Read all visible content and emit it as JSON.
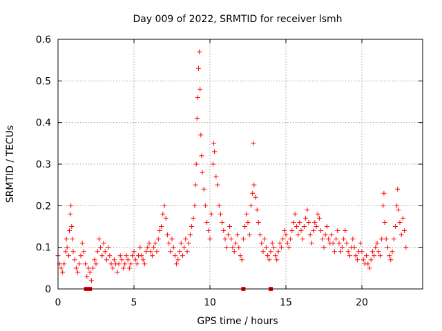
{
  "chart_data": {
    "type": "scatter",
    "title": "Day 009 of 2022, SRMTID for receiver lsmh",
    "xlabel": "GPS time / hours",
    "ylabel": "SRMTID / TECUs",
    "xlim": [
      0,
      24
    ],
    "ylim": [
      0,
      0.6
    ],
    "xticks": [
      0,
      5,
      10,
      15,
      20
    ],
    "xtick_labels": [
      "0",
      "5",
      "10",
      "15",
      "20"
    ],
    "yticks": [
      0,
      0.1,
      0.2,
      0.3,
      0.4,
      0.5,
      0.6
    ],
    "ytick_labels": [
      "0",
      "0.1",
      "0.2",
      "0.3",
      "0.4",
      "0.5",
      "0.6"
    ],
    "grid": true,
    "marker": "plus",
    "color": "#ff0000",
    "series": [
      {
        "name": "SRMTID",
        "points": [
          [
            0.0,
            0.08
          ],
          [
            0.1,
            0.06
          ],
          [
            0.2,
            0.05
          ],
          [
            0.3,
            0.04
          ],
          [
            0.4,
            0.06
          ],
          [
            0.5,
            0.09
          ],
          [
            0.55,
            0.12
          ],
          [
            0.6,
            0.1
          ],
          [
            0.7,
            0.08
          ],
          [
            0.75,
            0.14
          ],
          [
            0.8,
            0.18
          ],
          [
            0.85,
            0.2
          ],
          [
            0.9,
            0.15
          ],
          [
            0.95,
            0.12
          ],
          [
            1.0,
            0.09
          ],
          [
            1.1,
            0.07
          ],
          [
            1.2,
            0.05
          ],
          [
            1.3,
            0.04
          ],
          [
            1.4,
            0.06
          ],
          [
            1.5,
            0.08
          ],
          [
            1.6,
            0.11
          ],
          [
            1.7,
            0.09
          ],
          [
            1.8,
            0.06
          ],
          [
            1.9,
            0.03
          ],
          [
            2.0,
            0.05
          ],
          [
            2.1,
            0.04
          ],
          [
            2.2,
            0.02
          ],
          [
            2.3,
            0.05
          ],
          [
            2.4,
            0.07
          ],
          [
            2.5,
            0.06
          ],
          [
            2.6,
            0.09
          ],
          [
            2.7,
            0.12
          ],
          [
            2.8,
            0.1
          ],
          [
            2.9,
            0.08
          ],
          [
            3.0,
            0.11
          ],
          [
            3.1,
            0.09
          ],
          [
            3.2,
            0.07
          ],
          [
            3.3,
            0.1
          ],
          [
            3.4,
            0.08
          ],
          [
            3.5,
            0.06
          ],
          [
            3.6,
            0.05
          ],
          [
            3.7,
            0.07
          ],
          [
            3.8,
            0.06
          ],
          [
            3.9,
            0.04
          ],
          [
            4.0,
            0.06
          ],
          [
            4.1,
            0.08
          ],
          [
            4.2,
            0.07
          ],
          [
            4.3,
            0.05
          ],
          [
            4.4,
            0.06
          ],
          [
            4.5,
            0.08
          ],
          [
            4.6,
            0.07
          ],
          [
            4.7,
            0.05
          ],
          [
            4.8,
            0.06
          ],
          [
            4.9,
            0.08
          ],
          [
            5.0,
            0.09
          ],
          [
            5.1,
            0.07
          ],
          [
            5.2,
            0.06
          ],
          [
            5.3,
            0.08
          ],
          [
            5.4,
            0.1
          ],
          [
            5.5,
            0.08
          ],
          [
            5.6,
            0.07
          ],
          [
            5.7,
            0.06
          ],
          [
            5.8,
            0.09
          ],
          [
            5.9,
            0.1
          ],
          [
            6.0,
            0.11
          ],
          [
            6.1,
            0.09
          ],
          [
            6.2,
            0.08
          ],
          [
            6.3,
            0.1
          ],
          [
            6.4,
            0.11
          ],
          [
            6.5,
            0.09
          ],
          [
            6.6,
            0.12
          ],
          [
            6.7,
            0.14
          ],
          [
            6.8,
            0.15
          ],
          [
            6.9,
            0.18
          ],
          [
            7.0,
            0.2
          ],
          [
            7.1,
            0.17
          ],
          [
            7.2,
            0.13
          ],
          [
            7.3,
            0.11
          ],
          [
            7.4,
            0.09
          ],
          [
            7.5,
            0.12
          ],
          [
            7.6,
            0.1
          ],
          [
            7.7,
            0.08
          ],
          [
            7.8,
            0.06
          ],
          [
            7.9,
            0.07
          ],
          [
            8.0,
            0.09
          ],
          [
            8.1,
            0.11
          ],
          [
            8.2,
            0.08
          ],
          [
            8.3,
            0.1
          ],
          [
            8.4,
            0.12
          ],
          [
            8.5,
            0.09
          ],
          [
            8.6,
            0.11
          ],
          [
            8.7,
            0.13
          ],
          [
            8.8,
            0.15
          ],
          [
            8.9,
            0.17
          ],
          [
            9.0,
            0.2
          ],
          [
            9.05,
            0.25
          ],
          [
            9.1,
            0.3
          ],
          [
            9.15,
            0.41
          ],
          [
            9.2,
            0.46
          ],
          [
            9.25,
            0.53
          ],
          [
            9.3,
            0.57
          ],
          [
            9.35,
            0.48
          ],
          [
            9.4,
            0.37
          ],
          [
            9.45,
            0.32
          ],
          [
            9.5,
            0.28
          ],
          [
            9.6,
            0.24
          ],
          [
            9.7,
            0.2
          ],
          [
            9.8,
            0.16
          ],
          [
            9.9,
            0.14
          ],
          [
            10.0,
            0.12
          ],
          [
            10.1,
            0.18
          ],
          [
            10.2,
            0.3
          ],
          [
            10.25,
            0.35
          ],
          [
            10.3,
            0.33
          ],
          [
            10.4,
            0.27
          ],
          [
            10.5,
            0.25
          ],
          [
            10.6,
            0.2
          ],
          [
            10.7,
            0.18
          ],
          [
            10.8,
            0.16
          ],
          [
            10.9,
            0.14
          ],
          [
            11.0,
            0.12
          ],
          [
            11.1,
            0.1
          ],
          [
            11.2,
            0.13
          ],
          [
            11.3,
            0.15
          ],
          [
            11.4,
            0.12
          ],
          [
            11.5,
            0.1
          ],
          [
            11.6,
            0.09
          ],
          [
            11.7,
            0.11
          ],
          [
            11.8,
            0.13
          ],
          [
            11.9,
            0.1
          ],
          [
            12.0,
            0.08
          ],
          [
            12.1,
            0.07
          ],
          [
            12.2,
            0.12
          ],
          [
            12.3,
            0.15
          ],
          [
            12.4,
            0.18
          ],
          [
            12.5,
            0.16
          ],
          [
            12.6,
            0.13
          ],
          [
            12.7,
            0.2
          ],
          [
            12.8,
            0.23
          ],
          [
            12.85,
            0.35
          ],
          [
            12.9,
            0.25
          ],
          [
            13.0,
            0.22
          ],
          [
            13.1,
            0.19
          ],
          [
            13.2,
            0.16
          ],
          [
            13.3,
            0.13
          ],
          [
            13.4,
            0.11
          ],
          [
            13.5,
            0.09
          ],
          [
            13.6,
            0.12
          ],
          [
            13.7,
            0.1
          ],
          [
            13.8,
            0.08
          ],
          [
            13.9,
            0.07
          ],
          [
            14.0,
            0.09
          ],
          [
            14.1,
            0.11
          ],
          [
            14.2,
            0.1
          ],
          [
            14.3,
            0.08
          ],
          [
            14.4,
            0.07
          ],
          [
            14.5,
            0.09
          ],
          [
            14.6,
            0.11
          ],
          [
            14.7,
            0.1
          ],
          [
            14.8,
            0.12
          ],
          [
            14.9,
            0.14
          ],
          [
            15.0,
            0.13
          ],
          [
            15.1,
            0.11
          ],
          [
            15.2,
            0.1
          ],
          [
            15.3,
            0.12
          ],
          [
            15.4,
            0.14
          ],
          [
            15.5,
            0.16
          ],
          [
            15.6,
            0.18
          ],
          [
            15.7,
            0.15
          ],
          [
            15.8,
            0.13
          ],
          [
            15.9,
            0.16
          ],
          [
            16.0,
            0.14
          ],
          [
            16.1,
            0.12
          ],
          [
            16.2,
            0.15
          ],
          [
            16.3,
            0.17
          ],
          [
            16.4,
            0.19
          ],
          [
            16.5,
            0.16
          ],
          [
            16.6,
            0.13
          ],
          [
            16.7,
            0.11
          ],
          [
            16.8,
            0.14
          ],
          [
            16.9,
            0.16
          ],
          [
            17.0,
            0.15
          ],
          [
            17.1,
            0.18
          ],
          [
            17.2,
            0.17
          ],
          [
            17.3,
            0.14
          ],
          [
            17.4,
            0.12
          ],
          [
            17.5,
            0.1
          ],
          [
            17.6,
            0.13
          ],
          [
            17.7,
            0.15
          ],
          [
            17.8,
            0.12
          ],
          [
            17.9,
            0.11
          ],
          [
            18.0,
            0.13
          ],
          [
            18.1,
            0.11
          ],
          [
            18.2,
            0.09
          ],
          [
            18.3,
            0.12
          ],
          [
            18.4,
            0.14
          ],
          [
            18.5,
            0.11
          ],
          [
            18.6,
            0.09
          ],
          [
            18.7,
            0.1
          ],
          [
            18.8,
            0.12
          ],
          [
            18.9,
            0.14
          ],
          [
            19.0,
            0.11
          ],
          [
            19.1,
            0.09
          ],
          [
            19.2,
            0.08
          ],
          [
            19.3,
            0.1
          ],
          [
            19.4,
            0.12
          ],
          [
            19.5,
            0.1
          ],
          [
            19.6,
            0.08
          ],
          [
            19.7,
            0.07
          ],
          [
            19.8,
            0.09
          ],
          [
            19.9,
            0.11
          ],
          [
            20.0,
            0.09
          ],
          [
            20.1,
            0.07
          ],
          [
            20.2,
            0.06
          ],
          [
            20.3,
            0.08
          ],
          [
            20.4,
            0.06
          ],
          [
            20.5,
            0.05
          ],
          [
            20.6,
            0.07
          ],
          [
            20.7,
            0.09
          ],
          [
            20.8,
            0.08
          ],
          [
            20.9,
            0.1
          ],
          [
            21.0,
            0.11
          ],
          [
            21.1,
            0.09
          ],
          [
            21.2,
            0.08
          ],
          [
            21.3,
            0.12
          ],
          [
            21.4,
            0.2
          ],
          [
            21.45,
            0.23
          ],
          [
            21.5,
            0.16
          ],
          [
            21.6,
            0.12
          ],
          [
            21.7,
            0.1
          ],
          [
            21.8,
            0.08
          ],
          [
            21.9,
            0.07
          ],
          [
            22.0,
            0.09
          ],
          [
            22.1,
            0.12
          ],
          [
            22.2,
            0.15
          ],
          [
            22.3,
            0.2
          ],
          [
            22.35,
            0.24
          ],
          [
            22.4,
            0.19
          ],
          [
            22.5,
            0.16
          ],
          [
            22.6,
            0.13
          ],
          [
            22.7,
            0.17
          ],
          [
            22.8,
            0.14
          ],
          [
            22.9,
            0.1
          ]
        ],
        "zero_points": [
          1.85,
          2.1,
          12.2,
          14.0
        ]
      }
    ]
  }
}
